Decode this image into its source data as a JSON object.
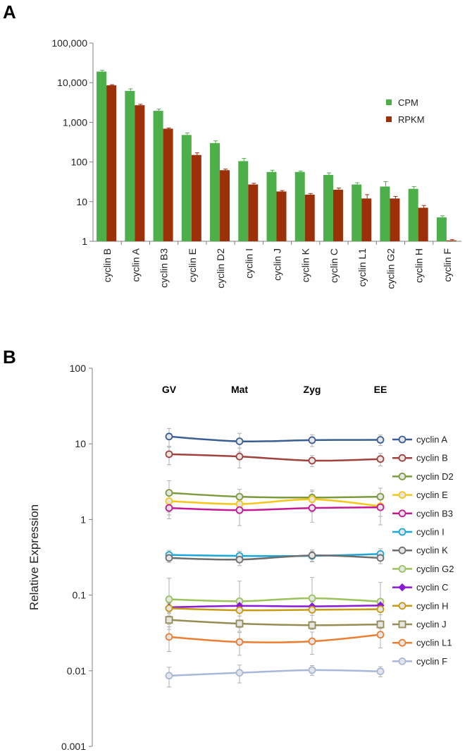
{
  "chart_data": [
    {
      "panel_label": "A",
      "type": "bar",
      "yscale": "log",
      "ylim": [
        1,
        100000
      ],
      "yticks": [
        1,
        10,
        100,
        1000,
        10000,
        100000
      ],
      "ytick_labels": [
        "1",
        "10",
        "100",
        "1,000",
        "10,000",
        "100,000"
      ],
      "categories": [
        "cyclin B",
        "cyclin A",
        "cyclin B3",
        "cyclin E",
        "cyclin D2",
        "cyclin I",
        "cyclin J",
        "cyclin K",
        "cyclin C",
        "cyclin L1",
        "cyclin G2",
        "cyclin H",
        "cyclin F"
      ],
      "series": [
        {
          "name": "CPM",
          "color": "#4daf4a",
          "values": [
            19000,
            6200,
            1950,
            480,
            300,
            105,
            56,
            56,
            47,
            27,
            24,
            21,
            4
          ],
          "errors": [
            1500,
            800,
            200,
            60,
            40,
            18,
            6,
            3,
            6,
            3,
            8,
            3,
            0.4
          ]
        },
        {
          "name": "RPKM",
          "color": "#9c3009",
          "values": [
            8600,
            2700,
            690,
            150,
            62,
            27,
            18,
            15,
            20,
            12,
            12,
            7,
            1.05
          ],
          "errors": [
            300,
            150,
            30,
            20,
            4,
            2,
            1,
            1,
            2,
            3,
            1.5,
            1,
            0.05
          ]
        }
      ],
      "legend_position": "right",
      "grid": false
    },
    {
      "panel_label": "B",
      "type": "line",
      "yscale": "log",
      "ylim": [
        0.001,
        100
      ],
      "yticks": [
        0.001,
        0.01,
        0.1,
        1,
        10,
        100
      ],
      "ytick_labels": [
        "0.001",
        "0.01",
        "0.1",
        "1",
        "10",
        "100"
      ],
      "ylabel": "Relative Expression",
      "categories": [
        "GV",
        "Mat",
        "Zyg",
        "EE"
      ],
      "series": [
        {
          "name": "cyclin A",
          "color": "#3b5f94",
          "marker": "circle",
          "values": [
            12.5,
            10.8,
            11.2,
            11.3
          ],
          "errors": [
            3.5,
            3.0,
            2.0,
            1.8
          ]
        },
        {
          "name": "cyclin B",
          "color": "#a0413d",
          "marker": "circle",
          "values": [
            7.3,
            6.8,
            6.0,
            6.3
          ],
          "errors": [
            2.0,
            2.0,
            1.0,
            1.2
          ]
        },
        {
          "name": "cyclin D2",
          "color": "#7b9a3b",
          "marker": "circle",
          "values": [
            2.25,
            2.0,
            1.95,
            2.0
          ],
          "errors": [
            1.0,
            0.5,
            0.4,
            0.6
          ]
        },
        {
          "name": "cyclin E",
          "color": "#f5c518",
          "marker": "circle",
          "values": [
            1.75,
            1.6,
            1.85,
            1.5
          ],
          "errors": [
            0.6,
            0.4,
            0.6,
            0.4
          ]
        },
        {
          "name": "cyclin B3",
          "color": "#c51a96",
          "marker": "circle",
          "values": [
            1.42,
            1.33,
            1.42,
            1.45
          ],
          "errors": [
            0.4,
            0.5,
            0.5,
            0.6
          ]
        },
        {
          "name": "cyclin I",
          "color": "#1aa7d9",
          "marker": "circle",
          "values": [
            0.34,
            0.33,
            0.33,
            0.35
          ],
          "errors": [
            0.05,
            0.05,
            0.05,
            0.06
          ]
        },
        {
          "name": "cyclin K",
          "color": "#6e6e6e",
          "marker": "circle",
          "values": [
            0.31,
            0.295,
            0.335,
            0.31
          ],
          "errors": [
            0.04,
            0.05,
            0.06,
            0.05
          ]
        },
        {
          "name": "cyclin G2",
          "color": "#9bc35b",
          "marker": "circle",
          "values": [
            0.088,
            0.083,
            0.091,
            0.082
          ],
          "errors": [
            0.08,
            0.07,
            0.08,
            0.065
          ]
        },
        {
          "name": "cyclin C",
          "color": "#8b1ad6",
          "marker": "diamond",
          "values": [
            0.069,
            0.072,
            0.071,
            0.073
          ],
          "errors": [
            0.01,
            0.01,
            0.01,
            0.01
          ]
        },
        {
          "name": "cyclin H",
          "color": "#c89a14",
          "marker": "circle",
          "values": [
            0.067,
            0.063,
            0.064,
            0.065
          ],
          "errors": [
            0.01,
            0.01,
            0.01,
            0.01
          ]
        },
        {
          "name": "cyclin J",
          "color": "#958d55",
          "marker": "square",
          "values": [
            0.047,
            0.042,
            0.04,
            0.041
          ],
          "errors": [
            0.006,
            0.005,
            0.005,
            0.005
          ]
        },
        {
          "name": "cyclin L1",
          "color": "#ed7d31",
          "marker": "circle",
          "values": [
            0.028,
            0.024,
            0.0245,
            0.03
          ],
          "errors": [
            0.01,
            0.008,
            0.008,
            0.01
          ]
        },
        {
          "name": "cyclin F",
          "color": "#a8b8d8",
          "marker": "circle",
          "values": [
            0.0086,
            0.0094,
            0.0102,
            0.0098
          ],
          "errors": [
            0.0025,
            0.0025,
            0.0015,
            0.0015
          ]
        }
      ],
      "legend_position": "right",
      "grid": false
    }
  ]
}
